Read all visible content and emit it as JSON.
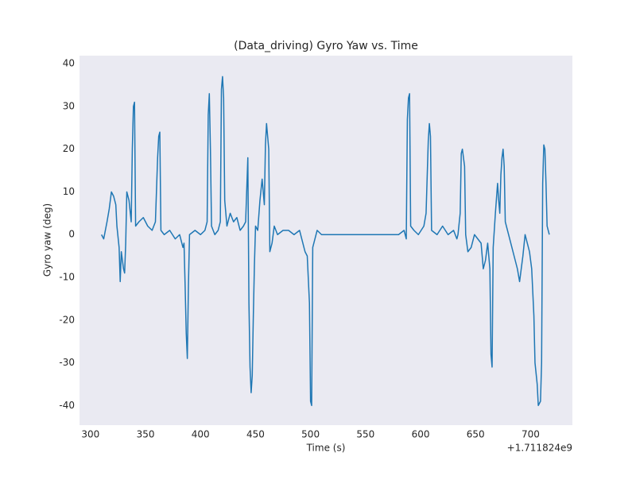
{
  "chart_data": {
    "type": "line",
    "title": "(Data_driving) Gyro Yaw vs. Time",
    "xlabel": "Time (s)",
    "ylabel": "Gyro yaw (deg)",
    "x_offset_label": "+1.711824e9",
    "xlim": [
      290,
      738
    ],
    "ylim": [
      -44.6,
      41.9
    ],
    "xticks": [
      300,
      350,
      400,
      450,
      500,
      550,
      600,
      650,
      700
    ],
    "yticks": [
      -40,
      -30,
      -20,
      -10,
      0,
      10,
      20,
      30,
      40
    ],
    "grid": false,
    "x": [
      310,
      312,
      315,
      317,
      319,
      321,
      323,
      324,
      326,
      327,
      328,
      330,
      331,
      332,
      333,
      335,
      337,
      338,
      339,
      340,
      341,
      344,
      348,
      352,
      356,
      359,
      361,
      362,
      363,
      364,
      367,
      372,
      377,
      381,
      384,
      385,
      386,
      387,
      388,
      389,
      390,
      395,
      400,
      404,
      406,
      407,
      408,
      409,
      410,
      413,
      416,
      418,
      419,
      420,
      421,
      422,
      424,
      427,
      430,
      433,
      436,
      439,
      441,
      443,
      444,
      445,
      446,
      447,
      448,
      449,
      450,
      452,
      454,
      456,
      458,
      459,
      460,
      462,
      463,
      465,
      467,
      470,
      475,
      480,
      485,
      490,
      493,
      495,
      497,
      499,
      500,
      501,
      502,
      504,
      506,
      510,
      550,
      580,
      585,
      587,
      588,
      589,
      590,
      591,
      594,
      598,
      603,
      605,
      607,
      608,
      609,
      610,
      615,
      620,
      625,
      630,
      633,
      634,
      636,
      637,
      638,
      640,
      641,
      643,
      646,
      649,
      652,
      655,
      657,
      659,
      661,
      663,
      664,
      665,
      666,
      668,
      670,
      671,
      672,
      673,
      674,
      675,
      676,
      677,
      680,
      683,
      686,
      688,
      690,
      691,
      693,
      695,
      697,
      699,
      701,
      703,
      704,
      706,
      707,
      709,
      710,
      711,
      712,
      713,
      714,
      715,
      716,
      717
    ],
    "series": [
      {
        "name": "Gyro yaw",
        "color": "#1f77b4",
        "values": [
          0,
          -1,
          3,
          6,
          10,
          9,
          7,
          2,
          -3,
          -11,
          -4,
          -8,
          -9,
          -2,
          10,
          8,
          3,
          20,
          30,
          31,
          2,
          3,
          4,
          2,
          1,
          3,
          18,
          23,
          24,
          1,
          0,
          1,
          -1,
          0,
          -3,
          -2,
          -12,
          -23,
          -29,
          -12,
          0,
          1,
          0,
          1,
          3,
          28,
          33,
          20,
          2,
          0,
          1,
          3,
          34,
          37,
          32,
          8,
          2,
          5,
          3,
          4,
          1,
          2,
          3,
          18,
          -16,
          -31,
          -37,
          -33,
          -19,
          -7,
          2,
          1,
          8,
          13,
          7,
          21,
          26,
          20,
          -4,
          -2,
          2,
          0,
          1,
          1,
          0,
          1,
          -2,
          -4,
          -5,
          -16,
          -39,
          -40,
          -3,
          -1,
          1,
          0,
          0,
          0,
          1,
          -1,
          27,
          32,
          33,
          2,
          1,
          0,
          2,
          5,
          22,
          26,
          23,
          1,
          0,
          2,
          0,
          1,
          -1,
          0,
          5,
          19,
          20,
          16,
          0,
          -4,
          -3,
          0,
          -1,
          -2,
          -8,
          -6,
          -2,
          -8,
          -28,
          -31,
          -3,
          5,
          12,
          8,
          5,
          14,
          18,
          20,
          16,
          3,
          0,
          -3,
          -6,
          -8,
          -11,
          -9,
          -5,
          0,
          -2,
          -4,
          -8,
          -19,
          -30,
          -35,
          -40,
          -39,
          -30,
          12,
          21,
          20,
          12,
          2,
          1,
          0
        ]
      }
    ]
  }
}
